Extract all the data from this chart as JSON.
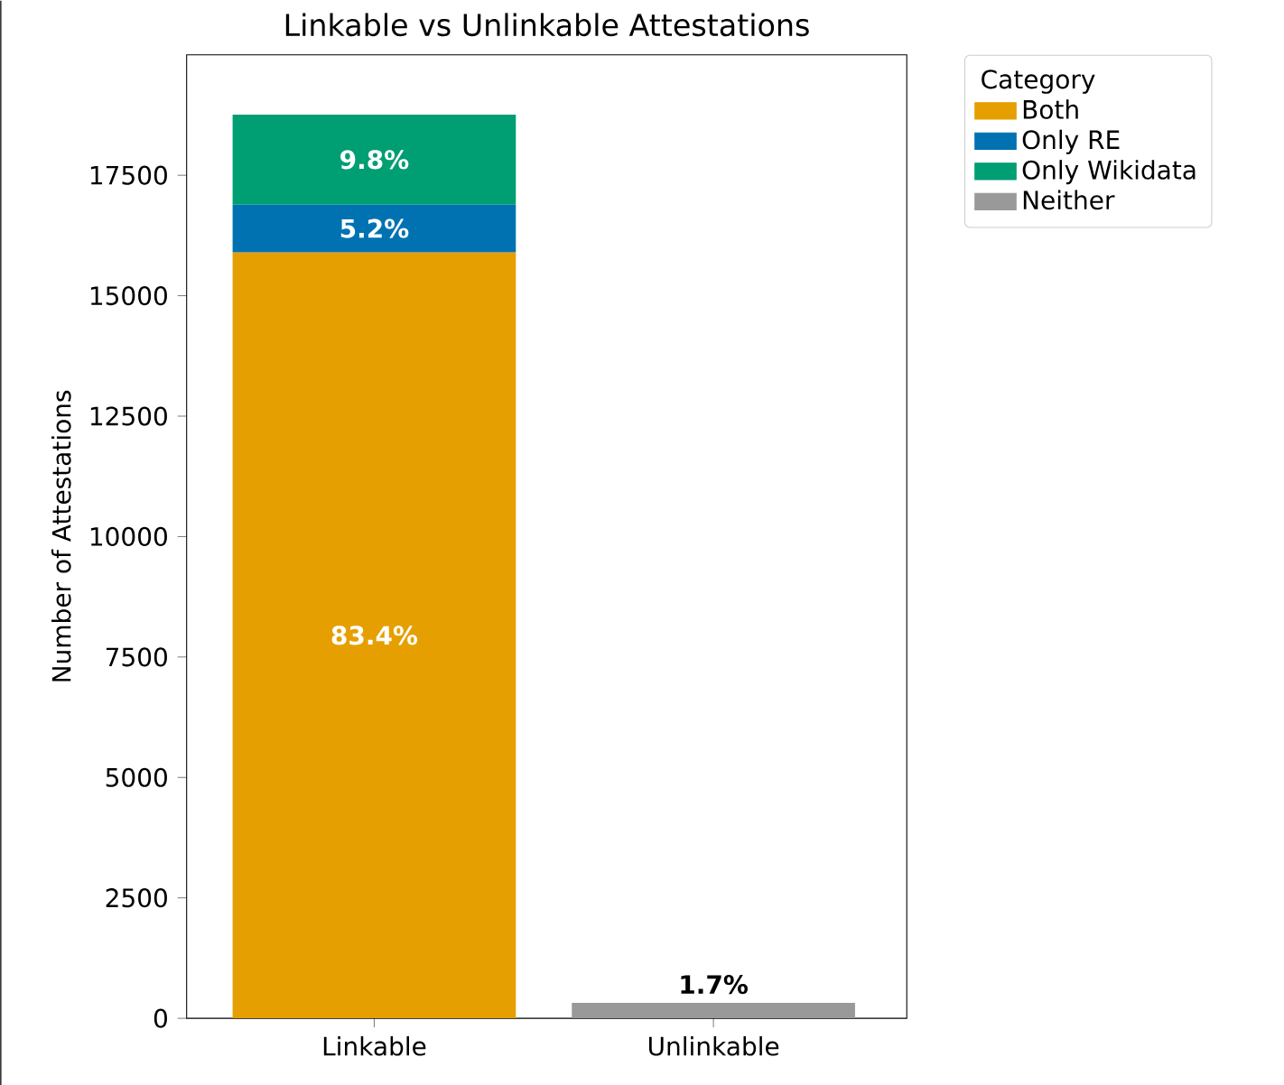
{
  "chart_data": {
    "type": "bar",
    "title": "Linkable vs Unlinkable Attestations",
    "ylabel": "Number of Attestations",
    "legend_title": "Category",
    "categories": [
      "Linkable",
      "Unlinkable"
    ],
    "stacked": true,
    "series": [
      {
        "name": "Both",
        "color": "#e69f00",
        "values": [
          15900,
          null
        ]
      },
      {
        "name": "Only RE",
        "color": "#0072b2",
        "values": [
          990,
          null
        ]
      },
      {
        "name": "Only Wikidata",
        "color": "#009e73",
        "values": [
          1870,
          null
        ]
      },
      {
        "name": "Neither",
        "color": "#999999",
        "values": [
          null,
          320
        ]
      }
    ],
    "annotations": [
      "83.4%",
      "5.2%",
      "9.8%",
      "1.7%"
    ],
    "ylim": [
      0,
      20000
    ],
    "yticks": [
      0,
      2500,
      5000,
      7500,
      10000,
      12500,
      15000,
      17500
    ],
    "grid": false,
    "legend": "top right"
  }
}
